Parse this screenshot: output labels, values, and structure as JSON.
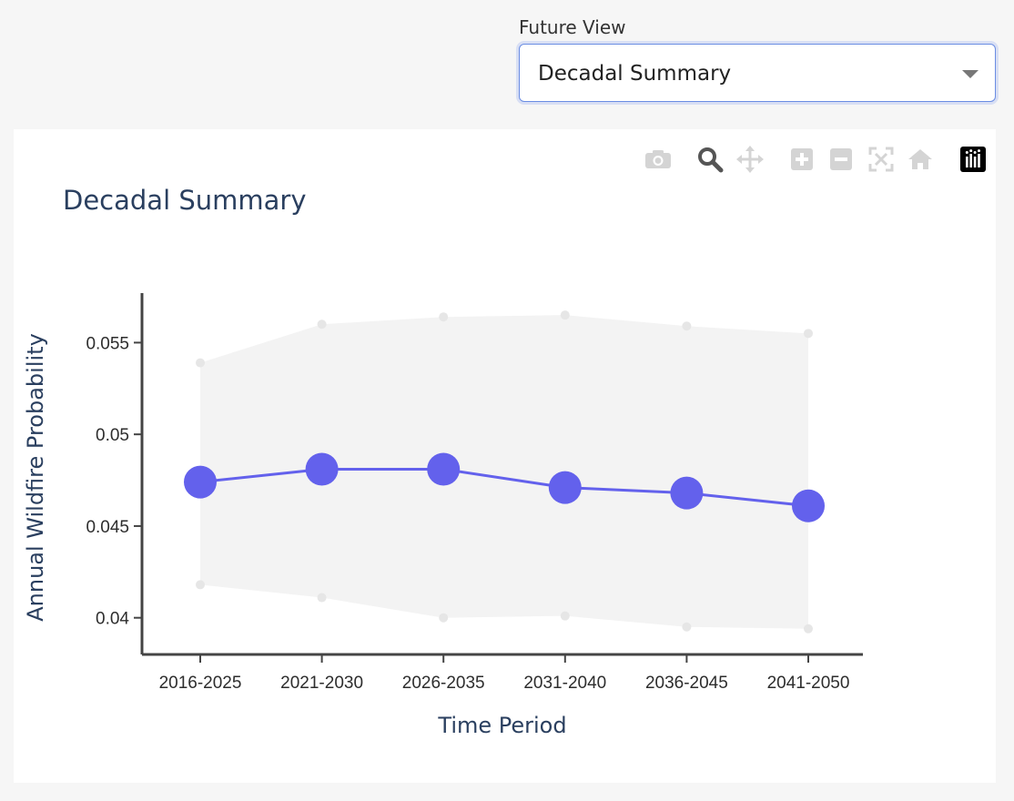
{
  "filter": {
    "label": "Future View",
    "selected": "Decadal Summary"
  },
  "modebar": {
    "buttons": [
      "camera-icon",
      "zoom-icon",
      "pan-icon",
      "zoom-in-icon",
      "zoom-out-icon",
      "autoscale-icon",
      "reset-axes-icon",
      "plotly-logo-icon"
    ]
  },
  "colors": {
    "series": "#6361ec",
    "band": "#efefef",
    "bound_marker": "#e6e6e6",
    "title": "#2a3f5f",
    "axis": "#444444"
  },
  "chart_data": {
    "type": "line",
    "title": "Decadal Summary",
    "xlabel": "Time Period",
    "ylabel": "Annual Wildfire Probability",
    "categories": [
      "2016-2025",
      "2021-2030",
      "2026-2035",
      "2031-2040",
      "2036-2045",
      "2041-2050"
    ],
    "series": [
      {
        "values": [
          0.0474,
          0.0481,
          0.0481,
          0.0471,
          0.0468,
          0.0461
        ]
      }
    ],
    "band": {
      "upper": [
        0.0539,
        0.056,
        0.0564,
        0.0565,
        0.0559,
        0.0555
      ],
      "lower": [
        0.0418,
        0.0411,
        0.04,
        0.0401,
        0.0395,
        0.0394
      ]
    },
    "yticks": [
      {
        "value": 0.04,
        "label": "0.04"
      },
      {
        "value": 0.045,
        "label": "0.045"
      },
      {
        "value": 0.05,
        "label": "0.05"
      },
      {
        "value": 0.055,
        "label": "0.055"
      }
    ],
    "ylim": [
      0.038,
      0.0577
    ],
    "grid": false,
    "legend": "none"
  }
}
